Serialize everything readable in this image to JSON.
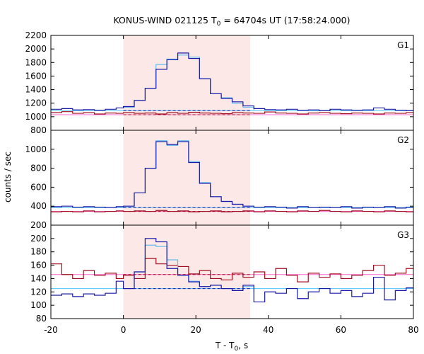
{
  "chart_data": {
    "type": "line",
    "title_main": "KONUS-WIND 021125 T",
    "title_sub": "0",
    "title_rest": " = 64704s UT (17:58:24.000)",
    "xlabel_main": "T - T",
    "xlabel_sub": "0",
    "xlabel_rest": ", s",
    "ylabel": "counts / sec",
    "xlim": [
      -20,
      80
    ],
    "xticks": [
      -20,
      0,
      20,
      40,
      60,
      80
    ],
    "highlight": {
      "x0": 0,
      "x1": 35,
      "color": "#fde8e8"
    },
    "colors": {
      "bg_level": "#ff66cc",
      "high_level": "#4fc3f7",
      "g_main": "#1a1aa6",
      "g_burst": "#66bbee",
      "g_soft": "#a01020"
    },
    "panels": [
      {
        "label": "G1",
        "ylim": [
          800,
          2200
        ],
        "yticks": [
          800,
          1000,
          1200,
          1400,
          1600,
          1800,
          2000,
          2200
        ],
        "bg_level": 1030,
        "high_level": 1090,
        "bg_series": [
          [
            -20,
            1060
          ],
          [
            -17,
            1075
          ],
          [
            -14,
            1050
          ],
          [
            -11,
            1060
          ],
          [
            -8,
            1040
          ],
          [
            -5,
            1055
          ],
          [
            -2,
            1050
          ],
          [
            0,
            1060
          ],
          [
            3,
            1050
          ],
          [
            6,
            1055
          ],
          [
            9,
            1040
          ],
          [
            12,
            1060
          ],
          [
            15,
            1050
          ],
          [
            18,
            1065
          ],
          [
            21,
            1055
          ],
          [
            24,
            1050
          ],
          [
            27,
            1045
          ],
          [
            30,
            1060
          ],
          [
            33,
            1055
          ],
          [
            36,
            1050
          ],
          [
            39,
            1070
          ],
          [
            42,
            1055
          ],
          [
            45,
            1050
          ],
          [
            48,
            1040
          ],
          [
            51,
            1055
          ],
          [
            54,
            1060
          ],
          [
            57,
            1050
          ],
          [
            60,
            1045
          ],
          [
            63,
            1055
          ],
          [
            66,
            1050
          ],
          [
            69,
            1040
          ],
          [
            72,
            1055
          ],
          [
            75,
            1050
          ],
          [
            78,
            1060
          ],
          [
            80,
            1060
          ]
        ],
        "main_series": [
          [
            -20,
            1110
          ],
          [
            -17,
            1120
          ],
          [
            -14,
            1100
          ],
          [
            -11,
            1105
          ],
          [
            -8,
            1095
          ],
          [
            -5,
            1110
          ],
          [
            -2,
            1130
          ],
          [
            0,
            1150
          ],
          [
            3,
            1240
          ],
          [
            6,
            1420
          ],
          [
            9,
            1700
          ],
          [
            12,
            1840
          ],
          [
            15,
            1940
          ],
          [
            18,
            1860
          ],
          [
            21,
            1560
          ],
          [
            24,
            1340
          ],
          [
            27,
            1270
          ],
          [
            30,
            1220
          ],
          [
            33,
            1160
          ],
          [
            36,
            1120
          ],
          [
            39,
            1105
          ],
          [
            42,
            1100
          ],
          [
            45,
            1110
          ],
          [
            48,
            1095
          ],
          [
            51,
            1100
          ],
          [
            54,
            1090
          ],
          [
            57,
            1110
          ],
          [
            60,
            1100
          ],
          [
            63,
            1095
          ],
          [
            66,
            1100
          ],
          [
            69,
            1130
          ],
          [
            72,
            1110
          ],
          [
            75,
            1095
          ],
          [
            78,
            1090
          ],
          [
            80,
            1090
          ]
        ],
        "burst_series": [
          [
            0,
            1140
          ],
          [
            3,
            1240
          ],
          [
            6,
            1420
          ],
          [
            9,
            1770
          ],
          [
            12,
            1850
          ],
          [
            15,
            1910
          ],
          [
            18,
            1880
          ],
          [
            21,
            1560
          ],
          [
            24,
            1340
          ],
          [
            27,
            1280
          ],
          [
            30,
            1200
          ],
          [
            33,
            1140
          ],
          [
            36,
            1100
          ]
        ]
      },
      {
        "label": "G2",
        "ylim": [
          200,
          1200
        ],
        "yticks": [
          200,
          400,
          600,
          800,
          1000
        ],
        "bg_level": 345,
        "high_level": 385,
        "bg_series": [
          [
            -20,
            340
          ],
          [
            -17,
            345
          ],
          [
            -14,
            340
          ],
          [
            -11,
            350
          ],
          [
            -8,
            340
          ],
          [
            -5,
            345
          ],
          [
            -2,
            350
          ],
          [
            0,
            345
          ],
          [
            3,
            350
          ],
          [
            6,
            345
          ],
          [
            9,
            355
          ],
          [
            12,
            345
          ],
          [
            15,
            350
          ],
          [
            18,
            340
          ],
          [
            21,
            345
          ],
          [
            24,
            350
          ],
          [
            27,
            340
          ],
          [
            30,
            345
          ],
          [
            33,
            350
          ],
          [
            36,
            340
          ],
          [
            39,
            350
          ],
          [
            42,
            345
          ],
          [
            45,
            340
          ],
          [
            48,
            350
          ],
          [
            51,
            345
          ],
          [
            54,
            355
          ],
          [
            57,
            345
          ],
          [
            60,
            340
          ],
          [
            63,
            350
          ],
          [
            66,
            345
          ],
          [
            69,
            340
          ],
          [
            72,
            350
          ],
          [
            75,
            345
          ],
          [
            78,
            340
          ],
          [
            80,
            340
          ]
        ],
        "main_series": [
          [
            -20,
            395
          ],
          [
            -17,
            400
          ],
          [
            -14,
            390
          ],
          [
            -11,
            395
          ],
          [
            -8,
            390
          ],
          [
            -5,
            385
          ],
          [
            -2,
            395
          ],
          [
            0,
            400
          ],
          [
            3,
            540
          ],
          [
            6,
            800
          ],
          [
            9,
            1080
          ],
          [
            12,
            1050
          ],
          [
            15,
            1080
          ],
          [
            18,
            860
          ],
          [
            21,
            640
          ],
          [
            24,
            500
          ],
          [
            27,
            450
          ],
          [
            30,
            420
          ],
          [
            33,
            400
          ],
          [
            36,
            390
          ],
          [
            39,
            395
          ],
          [
            42,
            390
          ],
          [
            45,
            380
          ],
          [
            48,
            395
          ],
          [
            51,
            385
          ],
          [
            54,
            390
          ],
          [
            57,
            385
          ],
          [
            60,
            395
          ],
          [
            63,
            380
          ],
          [
            66,
            390
          ],
          [
            69,
            385
          ],
          [
            72,
            395
          ],
          [
            75,
            380
          ],
          [
            78,
            390
          ],
          [
            80,
            390
          ]
        ],
        "burst_series": [
          [
            0,
            400
          ],
          [
            3,
            540
          ],
          [
            6,
            800
          ],
          [
            9,
            1090
          ],
          [
            12,
            1040
          ],
          [
            15,
            1090
          ],
          [
            18,
            870
          ],
          [
            21,
            650
          ],
          [
            24,
            500
          ],
          [
            27,
            450
          ],
          [
            30,
            420
          ],
          [
            33,
            400
          ],
          [
            36,
            390
          ]
        ]
      },
      {
        "label": "G3",
        "ylim": [
          80,
          220
        ],
        "yticks": [
          80,
          100,
          120,
          140,
          160,
          180,
          200
        ],
        "bg_level": 146,
        "high_level": 125,
        "bg_series": [
          [
            -20,
            162
          ],
          [
            -17,
            146
          ],
          [
            -14,
            140
          ],
          [
            -11,
            152
          ],
          [
            -8,
            145
          ],
          [
            -5,
            148
          ],
          [
            -2,
            140
          ],
          [
            0,
            145
          ],
          [
            3,
            140
          ],
          [
            6,
            170
          ],
          [
            9,
            162
          ],
          [
            12,
            160
          ],
          [
            15,
            158
          ],
          [
            18,
            147
          ],
          [
            21,
            152
          ],
          [
            24,
            140
          ],
          [
            27,
            138
          ],
          [
            30,
            148
          ],
          [
            33,
            142
          ],
          [
            36,
            150
          ],
          [
            39,
            140
          ],
          [
            42,
            155
          ],
          [
            45,
            145
          ],
          [
            48,
            135
          ],
          [
            51,
            148
          ],
          [
            54,
            142
          ],
          [
            57,
            147
          ],
          [
            60,
            140
          ],
          [
            63,
            145
          ],
          [
            66,
            152
          ],
          [
            69,
            160
          ],
          [
            72,
            145
          ],
          [
            75,
            148
          ],
          [
            78,
            155
          ],
          [
            80,
            155
          ]
        ],
        "main_series": [
          [
            -20,
            115
          ],
          [
            -17,
            117
          ],
          [
            -14,
            113
          ],
          [
            -11,
            117
          ],
          [
            -8,
            115
          ],
          [
            -5,
            118
          ],
          [
            -2,
            136
          ],
          [
            0,
            125
          ],
          [
            3,
            150
          ],
          [
            6,
            200
          ],
          [
            9,
            195
          ],
          [
            12,
            155
          ],
          [
            15,
            145
          ],
          [
            18,
            135
          ],
          [
            21,
            128
          ],
          [
            24,
            130
          ],
          [
            27,
            125
          ],
          [
            30,
            122
          ],
          [
            33,
            130
          ],
          [
            36,
            105
          ],
          [
            39,
            120
          ],
          [
            42,
            118
          ],
          [
            45,
            125
          ],
          [
            48,
            110
          ],
          [
            51,
            120
          ],
          [
            54,
            125
          ],
          [
            57,
            118
          ],
          [
            60,
            122
          ],
          [
            63,
            113
          ],
          [
            66,
            118
          ],
          [
            69,
            142
          ],
          [
            72,
            108
          ],
          [
            75,
            122
          ],
          [
            78,
            126
          ],
          [
            80,
            126
          ]
        ],
        "burst_series": [
          [
            0,
            125
          ],
          [
            3,
            150
          ],
          [
            6,
            190
          ],
          [
            9,
            188
          ],
          [
            12,
            168
          ],
          [
            15,
            145
          ],
          [
            18,
            136
          ],
          [
            21,
            128
          ],
          [
            24,
            130
          ],
          [
            27,
            125
          ],
          [
            30,
            122
          ],
          [
            33,
            128
          ],
          [
            36,
            120
          ]
        ]
      }
    ]
  }
}
